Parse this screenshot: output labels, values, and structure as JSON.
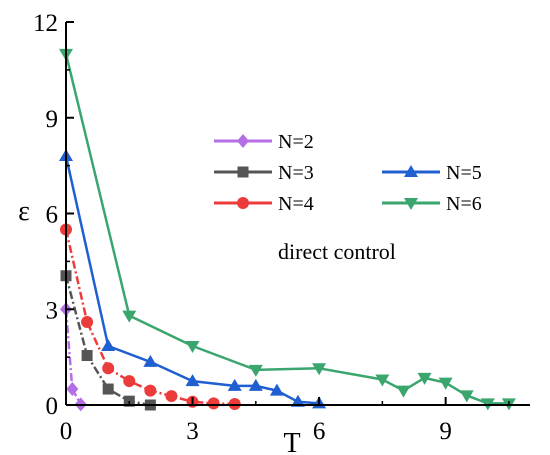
{
  "chart_data": {
    "type": "line",
    "xlabel": "T",
    "ylabel": "ε",
    "xlim": [
      0,
      11.0
    ],
    "ylim": [
      0,
      12
    ],
    "xticks": [
      0,
      3,
      6,
      9
    ],
    "yticks": [
      0,
      3,
      6,
      9,
      12
    ],
    "grid": false,
    "legend_placement": "top-right",
    "annotation": "direct control",
    "series": [
      {
        "name": "N=2",
        "color": "#b46ee6",
        "marker": "diamond",
        "dashed": true,
        "x": [
          0,
          0.15,
          0.35
        ],
        "y": [
          3.0,
          0.5,
          0.02
        ]
      },
      {
        "name": "N=3",
        "color": "#555555",
        "marker": "square",
        "dashed": true,
        "x": [
          0,
          0.5,
          1.0,
          1.5,
          2.0
        ],
        "y": [
          4.05,
          1.55,
          0.5,
          0.12,
          0.0
        ]
      },
      {
        "name": "N=4",
        "color": "#ec3b3b",
        "marker": "circle",
        "dashed": true,
        "x": [
          0,
          0.5,
          1.0,
          1.5,
          2.0,
          2.5,
          3.0,
          3.5,
          4.0
        ],
        "y": [
          5.5,
          2.6,
          1.15,
          0.75,
          0.45,
          0.28,
          0.1,
          0.05,
          0.03
        ]
      },
      {
        "name": "N=5",
        "color": "#1f5fd0",
        "marker": "triangle-up",
        "dashed": false,
        "x": [
          0,
          1.0,
          2.0,
          3.0,
          4.0,
          4.5,
          5.0,
          5.5,
          6.0
        ],
        "y": [
          7.8,
          1.85,
          1.35,
          0.75,
          0.6,
          0.6,
          0.45,
          0.1,
          0.05
        ]
      },
      {
        "name": "N=6",
        "color": "#3aa66e",
        "marker": "triangle-down",
        "dashed": false,
        "x": [
          0,
          1.5,
          3.0,
          4.5,
          6.0,
          7.5,
          8.0,
          8.5,
          9.0,
          9.5,
          10.0,
          10.5
        ],
        "y": [
          11.0,
          2.8,
          1.85,
          1.1,
          1.15,
          0.8,
          0.45,
          0.85,
          0.7,
          0.3,
          0.05,
          0.05
        ]
      }
    ]
  }
}
